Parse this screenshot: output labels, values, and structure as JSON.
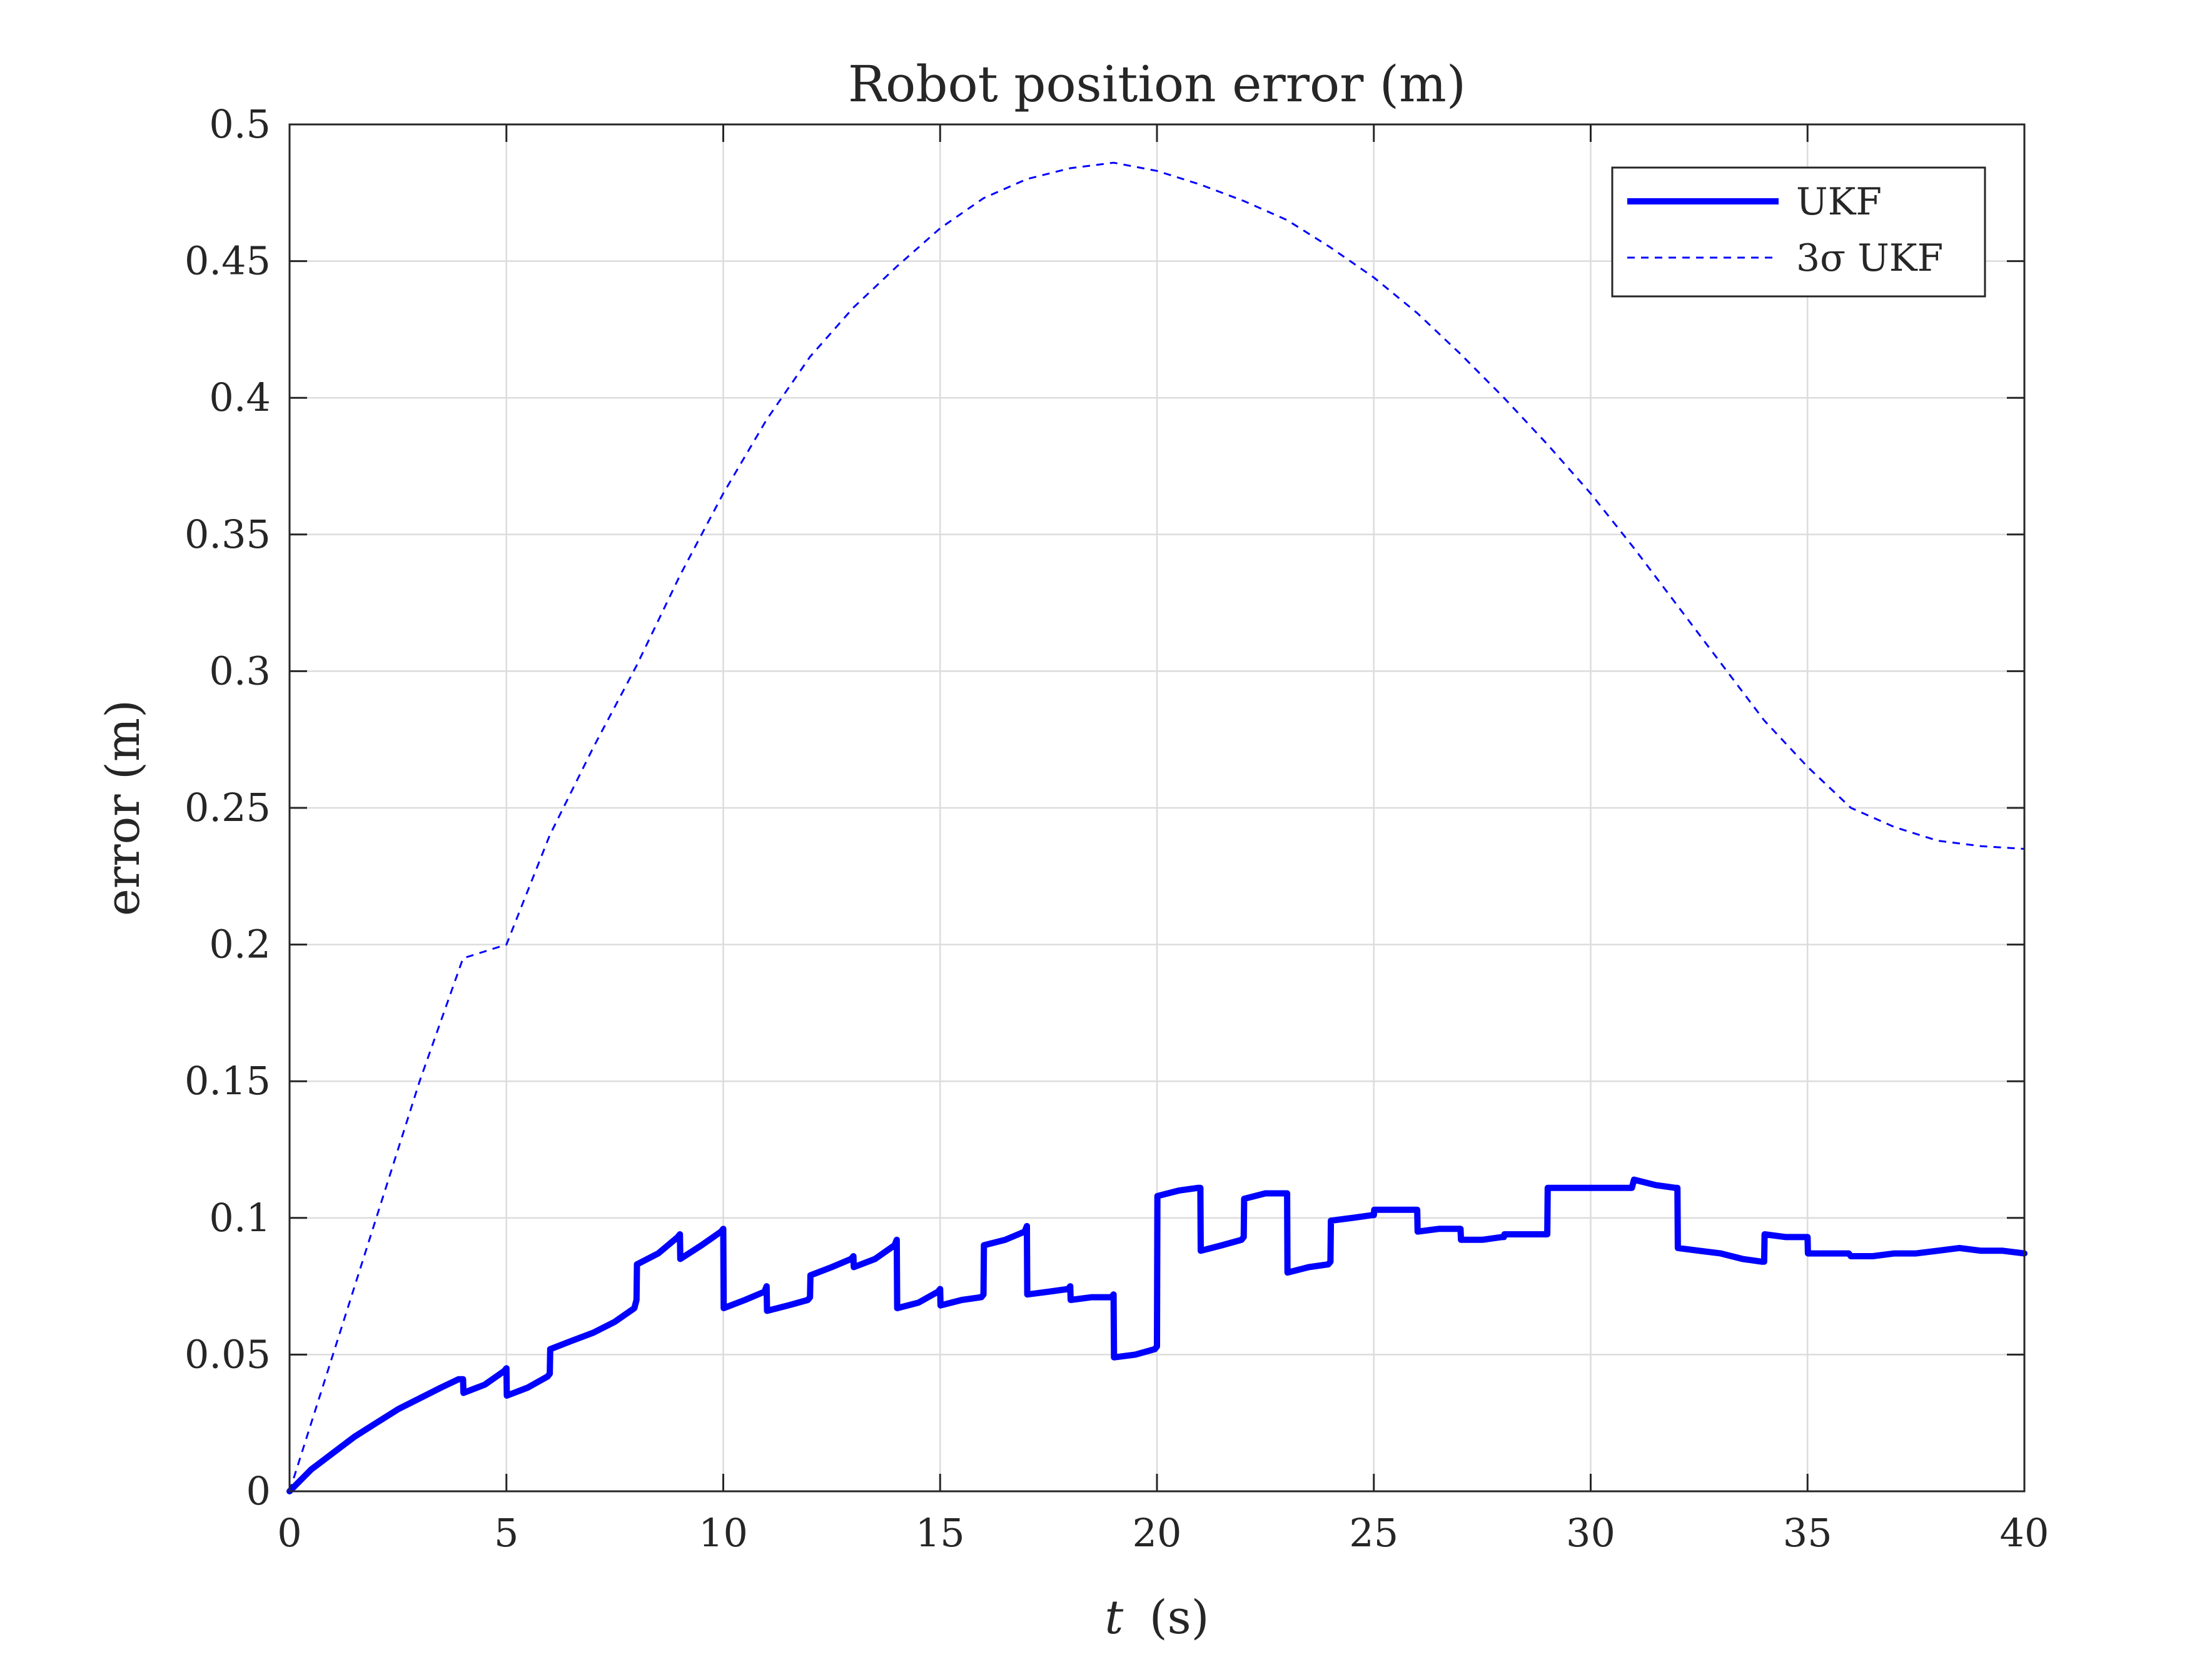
{
  "chart_data": {
    "type": "line",
    "title": "Robot position error (m)",
    "xlabel": {
      "var": "t",
      "unit": "(s)"
    },
    "ylabel": "error (m)",
    "xlim": [
      0,
      40
    ],
    "ylim": [
      0,
      0.5
    ],
    "xticks": [
      0,
      5,
      10,
      15,
      20,
      25,
      30,
      35,
      40
    ],
    "xtick_labels": [
      "0",
      "5",
      "10",
      "15",
      "20",
      "25",
      "30",
      "35",
      "40"
    ],
    "yticks": [
      0,
      0.05,
      0.1,
      0.15,
      0.2,
      0.25,
      0.3,
      0.35,
      0.4,
      0.45,
      0.5
    ],
    "ytick_labels": [
      "0",
      "0.05",
      "0.1",
      "0.15",
      "0.2",
      "0.25",
      "0.3",
      "0.35",
      "0.4",
      "0.45",
      "0.5"
    ],
    "grid": true,
    "legend_position": "top-right",
    "series": [
      {
        "name": "UKF",
        "color": "#0000ff",
        "style": "solid",
        "x": [
          0,
          0.5,
          1,
          1.5,
          2,
          2.5,
          3,
          3.5,
          3.9,
          4.0,
          4.01,
          4.5,
          4.95,
          5.0,
          5.01,
          5.5,
          5.95,
          6.0,
          6.01,
          6.5,
          7,
          7.5,
          7.95,
          8.0,
          8.01,
          8.5,
          8.95,
          9.0,
          9.01,
          9.5,
          9.95,
          10.0,
          10.01,
          10.5,
          10.95,
          11.0,
          11.01,
          11.5,
          11.95,
          12.0,
          12.01,
          12.5,
          12.95,
          13.0,
          13.01,
          13.5,
          13.95,
          14.0,
          14.01,
          14.5,
          14.95,
          15.0,
          15.01,
          15.5,
          15.95,
          16.0,
          16.01,
          16.5,
          16.95,
          17.0,
          17.01,
          17.5,
          17.95,
          18.0,
          18.01,
          18.5,
          18.95,
          19.0,
          19.01,
          19.5,
          19.95,
          20.0,
          20.01,
          20.5,
          20.95,
          21.0,
          21.01,
          21.5,
          21.95,
          22.0,
          22.01,
          22.5,
          22.95,
          23.0,
          23.01,
          23.5,
          23.95,
          24.0,
          24.01,
          24.5,
          24.95,
          25.0,
          25.01,
          25.5,
          25.95,
          26.0,
          26.01,
          26.5,
          26.95,
          27.0,
          27.01,
          27.5,
          27.95,
          28.0,
          28.01,
          28.5,
          28.95,
          29.0,
          29.01,
          29.5,
          29.95,
          30.0,
          30.5,
          30.95,
          31.0,
          31.5,
          31.95,
          32.0,
          32.01,
          32.5,
          33,
          33.5,
          33.95,
          34.0,
          34.01,
          34.5,
          34.95,
          35.0,
          35.01,
          35.5,
          35.95,
          36.0,
          36.5,
          37,
          37.5,
          38,
          38.5,
          39,
          39.5,
          40
        ],
        "y": [
          0,
          0.008,
          0.014,
          0.02,
          0.025,
          0.03,
          0.034,
          0.038,
          0.041,
          0.041,
          0.036,
          0.039,
          0.044,
          0.045,
          0.035,
          0.038,
          0.042,
          0.043,
          0.052,
          0.055,
          0.058,
          0.062,
          0.067,
          0.07,
          0.083,
          0.087,
          0.093,
          0.094,
          0.085,
          0.09,
          0.095,
          0.096,
          0.067,
          0.07,
          0.073,
          0.075,
          0.066,
          0.068,
          0.07,
          0.071,
          0.079,
          0.082,
          0.085,
          0.086,
          0.082,
          0.085,
          0.09,
          0.092,
          0.067,
          0.069,
          0.073,
          0.074,
          0.068,
          0.07,
          0.071,
          0.072,
          0.09,
          0.092,
          0.095,
          0.097,
          0.072,
          0.073,
          0.074,
          0.075,
          0.07,
          0.071,
          0.071,
          0.072,
          0.049,
          0.05,
          0.052,
          0.053,
          0.108,
          0.11,
          0.111,
          0.111,
          0.088,
          0.09,
          0.092,
          0.093,
          0.107,
          0.109,
          0.109,
          0.109,
          0.08,
          0.082,
          0.083,
          0.084,
          0.099,
          0.1,
          0.101,
          0.101,
          0.103,
          0.103,
          0.103,
          0.103,
          0.095,
          0.096,
          0.096,
          0.096,
          0.092,
          0.092,
          0.093,
          0.093,
          0.094,
          0.094,
          0.094,
          0.094,
          0.111,
          0.111,
          0.111,
          0.111,
          0.111,
          0.111,
          0.114,
          0.112,
          0.111,
          0.111,
          0.089,
          0.088,
          0.087,
          0.085,
          0.084,
          0.084,
          0.094,
          0.093,
          0.093,
          0.093,
          0.087,
          0.087,
          0.087,
          0.086,
          0.086,
          0.087,
          0.087,
          0.088,
          0.089,
          0.088,
          0.088,
          0.087
        ]
      },
      {
        "name": "3σ UKF",
        "color": "#0000ff",
        "style": "dashed",
        "x": [
          0,
          1,
          2,
          3,
          4,
          5,
          6,
          7,
          8,
          9,
          10,
          11,
          12,
          13,
          14,
          15,
          16,
          17,
          18,
          19,
          20,
          21,
          22,
          23,
          24,
          25,
          26,
          27,
          28,
          29,
          30,
          31,
          32,
          33,
          34,
          35,
          36,
          37,
          38,
          39,
          40
        ],
        "y": [
          0,
          0.05,
          0.1,
          0.15,
          0.195,
          0.2,
          0.24,
          0.272,
          0.302,
          0.335,
          0.365,
          0.392,
          0.415,
          0.433,
          0.448,
          0.462,
          0.473,
          0.48,
          0.484,
          0.486,
          0.483,
          0.478,
          0.472,
          0.465,
          0.455,
          0.444,
          0.431,
          0.416,
          0.4,
          0.383,
          0.365,
          0.345,
          0.324,
          0.303,
          0.282,
          0.265,
          0.25,
          0.243,
          0.238,
          0.236,
          0.235
        ]
      }
    ]
  }
}
